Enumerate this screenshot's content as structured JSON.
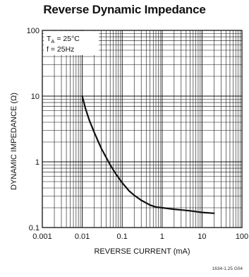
{
  "chart_data": {
    "type": "line",
    "title": "Reverse Dynamic Impedance",
    "xlabel": "REVERSE CURRENT (mA)",
    "ylabel": "DYNAMIC IMPEDANCE (Ω)",
    "x_scale": "log",
    "y_scale": "log",
    "xlim": [
      0.001,
      100
    ],
    "ylim": [
      0.1,
      100
    ],
    "x_ticks": [
      "0.001",
      "0.01",
      "0.1",
      "1",
      "10",
      "100"
    ],
    "y_ticks": [
      "0.1",
      "1",
      "10",
      "100"
    ],
    "grid": true,
    "annotations": {
      "ta_main": "T",
      "ta_sub": "A",
      "ta_rest": " = 25°C",
      "freq": "f = 25Hz"
    },
    "series": [
      {
        "x": [
          0.01,
          0.012,
          0.015,
          0.02,
          0.03,
          0.05,
          0.07,
          0.1,
          0.15,
          0.2,
          0.3,
          0.5,
          0.7,
          1,
          2,
          5,
          10,
          20
        ],
        "y": [
          10,
          6.5,
          4.3,
          2.8,
          1.6,
          0.9,
          0.65,
          0.48,
          0.36,
          0.31,
          0.26,
          0.22,
          0.205,
          0.2,
          0.19,
          0.18,
          0.17,
          0.165
        ]
      }
    ]
  },
  "footnote": "1634-1.25 G04"
}
